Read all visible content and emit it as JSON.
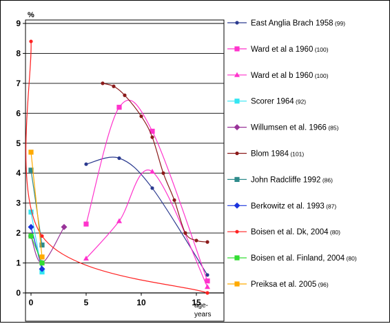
{
  "chart_data": {
    "type": "line",
    "ylabel": "%",
    "xlabel_line1": "age-",
    "xlabel_line2": "years",
    "xlim": [
      0,
      17
    ],
    "ylim": [
      0,
      9
    ],
    "x_ticks": [
      0,
      5,
      10,
      15
    ],
    "y_ticks": [
      0,
      1,
      2,
      3,
      4,
      5,
      6,
      7,
      8,
      9
    ],
    "grid": "horizontal",
    "legend_position": "right",
    "series": [
      {
        "name": "East Anglia Brach 1958",
        "ref": "(99)",
        "color": "#2b3a8f",
        "marker": "dot",
        "points": [
          [
            5,
            4.3
          ],
          [
            8,
            4.5
          ],
          [
            11,
            3.5
          ],
          [
            16,
            0.6
          ]
        ]
      },
      {
        "name": "Ward et al a 1960",
        "ref": "(100)",
        "color": "#ff33cc",
        "marker": "square",
        "points": [
          [
            5,
            2.3
          ],
          [
            8,
            6.2
          ],
          [
            11,
            5.4
          ],
          [
            16,
            0.4
          ]
        ]
      },
      {
        "name": "Ward et al b 1960",
        "ref": "(100)",
        "color": "#ff33cc",
        "marker": "triangle",
        "points": [
          [
            5,
            1.15
          ],
          [
            8,
            2.4
          ],
          [
            11,
            4.05
          ],
          [
            16,
            0.2
          ]
        ]
      },
      {
        "name": "Scorer 1964",
        "ref": "(92)",
        "color": "#33e6f2",
        "marker": "square",
        "points": [
          [
            0,
            2.7
          ],
          [
            1,
            0.7
          ]
        ]
      },
      {
        "name": "Willumsen et al. 1966",
        "ref": "(85)",
        "color": "#993399",
        "marker": "diamond",
        "points": [
          [
            0,
            1.9
          ],
          [
            1,
            1.0
          ],
          [
            3,
            2.2
          ]
        ]
      },
      {
        "name": "Blom 1984",
        "ref": "(101)",
        "color": "#8b1a1a",
        "marker": "dot",
        "points": [
          [
            6.5,
            7.0
          ],
          [
            7.5,
            6.9
          ],
          [
            8.5,
            6.6
          ],
          [
            10,
            5.9
          ],
          [
            11,
            5.2
          ],
          [
            12,
            4.0
          ],
          [
            13,
            3.1
          ],
          [
            14,
            2.0
          ],
          [
            15,
            1.75
          ],
          [
            16,
            1.7
          ]
        ]
      },
      {
        "name": "John Radcliffe 1992",
        "ref": "(86)",
        "color": "#2e8b8b",
        "marker": "square",
        "points": [
          [
            0,
            4.1
          ],
          [
            1,
            1.6
          ]
        ]
      },
      {
        "name": "Berkowitz et al. 1993",
        "ref": "(87)",
        "color": "#1a33dd",
        "marker": "diamond",
        "points": [
          [
            0,
            2.2
          ],
          [
            1,
            0.8
          ]
        ]
      },
      {
        "name": "Boisen et al. Dk, 2004",
        "ref": "(80)",
        "color": "#ff2222",
        "marker": "dot",
        "points": [
          [
            0,
            8.4
          ],
          [
            1,
            1.9
          ],
          [
            16,
            0.0
          ]
        ]
      },
      {
        "name": "Boisen et al. Finland, 2004",
        "ref": "(80)",
        "color": "#33dd33",
        "marker": "square",
        "points": [
          [
            0,
            1.9
          ],
          [
            1,
            1.0
          ]
        ]
      },
      {
        "name": "Preiksa et al. 2005",
        "ref": "(96)",
        "color": "#ffaa00",
        "marker": "square",
        "points": [
          [
            0,
            4.7
          ],
          [
            1,
            1.2
          ]
        ]
      }
    ]
  }
}
